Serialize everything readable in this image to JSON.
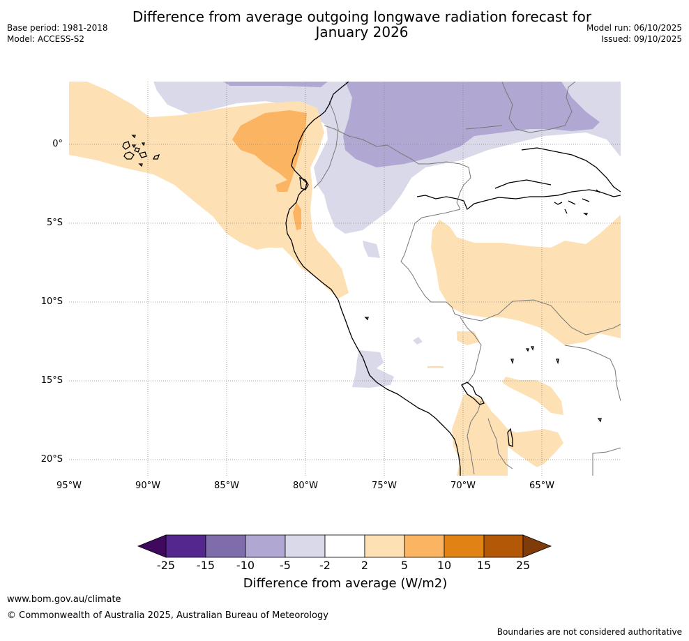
{
  "title": {
    "line1": "Difference from average outgoing longwave radiation forecast for",
    "line2": "January 2026"
  },
  "meta": {
    "base_period": "Base period: 1981-2018",
    "model": "Model: ACCESS-S2",
    "model_run": "Model run: 06/10/2025",
    "issued": "Issued: 09/10/2025"
  },
  "map": {
    "lon_range": [
      -95,
      -60
    ],
    "lat_range": [
      -21,
      4
    ],
    "lat_labels": [
      "0°",
      "5°S",
      "10°S",
      "15°S",
      "20°S"
    ],
    "lon_labels": [
      "95°W",
      "90°W",
      "85°W",
      "80°W",
      "75°W",
      "70°W",
      "65°W"
    ]
  },
  "colorbar": {
    "title": "Difference from average (W/m2)",
    "ticks": [
      "-25",
      "-15",
      "-10",
      "-5",
      "-2",
      "2",
      "5",
      "10",
      "15",
      "25"
    ],
    "colors": [
      "#3f0a5e",
      "#54278f",
      "#7f6dab",
      "#b0a8d2",
      "#d9d9ea",
      "#ffffff",
      "#fde0b4",
      "#fbb462",
      "#e08214",
      "#b35806",
      "#7f3b08"
    ]
  },
  "footer": {
    "url": "www.bom.gov.au/climate",
    "copyright": "© Commonwealth of Australia 2025, Australian Bureau of Meteorology",
    "disclaimer": "Boundaries are not considered authoritative"
  }
}
